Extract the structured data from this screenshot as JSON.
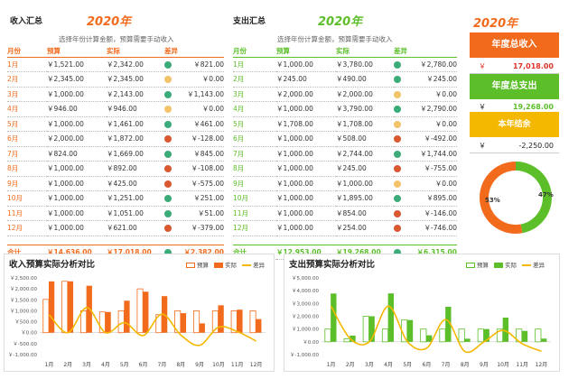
{
  "colors": {
    "orange": "#f26b1d",
    "green": "#5cbf2a",
    "yellow": "#f5b800",
    "dot_green": "#3cab7a",
    "dot_amber": "#f2c36b",
    "dot_red": "#d9582f"
  },
  "income": {
    "title": "收入汇总",
    "year": "2020年",
    "note": "选择年份计算金额，预算需要手动收入",
    "headers": {
      "month": "月份",
      "budget": "预算",
      "actual": "实际",
      "diff": "差异"
    },
    "rows": [
      {
        "month": "1月",
        "budget": "￥1,521.00",
        "actual": "￥2,342.00",
        "diff": "￥821.00",
        "status": "green"
      },
      {
        "month": "2月",
        "budget": "￥2,345.00",
        "actual": "￥2,345.00",
        "diff": "￥0.00",
        "status": "amber"
      },
      {
        "month": "3月",
        "budget": "￥1,000.00",
        "actual": "￥2,143.00",
        "diff": "￥1,143.00",
        "status": "green"
      },
      {
        "month": "4月",
        "budget": "￥946.00",
        "actual": "￥946.00",
        "diff": "￥0.00",
        "status": "amber"
      },
      {
        "month": "5月",
        "budget": "￥1,000.00",
        "actual": "￥1,461.00",
        "diff": "￥461.00",
        "status": "green"
      },
      {
        "month": "6月",
        "budget": "￥2,000.00",
        "actual": "￥1,872.00",
        "diff": "￥-128.00",
        "status": "red"
      },
      {
        "month": "7月",
        "budget": "￥824.00",
        "actual": "￥1,669.00",
        "diff": "￥845.00",
        "status": "green"
      },
      {
        "month": "8月",
        "budget": "￥1,000.00",
        "actual": "￥892.00",
        "diff": "￥-108.00",
        "status": "red"
      },
      {
        "month": "9月",
        "budget": "￥1,000.00",
        "actual": "￥425.00",
        "diff": "￥-575.00",
        "status": "red"
      },
      {
        "month": "10月",
        "budget": "￥1,000.00",
        "actual": "￥1,251.00",
        "diff": "￥251.00",
        "status": "green"
      },
      {
        "month": "11月",
        "budget": "￥1,000.00",
        "actual": "￥1,051.00",
        "diff": "￥51.00",
        "status": "green"
      },
      {
        "month": "12月",
        "budget": "￥1,000.00",
        "actual": "￥621.00",
        "diff": "￥-379.00",
        "status": "red"
      }
    ],
    "total": {
      "label": "合计",
      "budget": "￥14,636.00",
      "actual": "￥17,018.00",
      "diff": "￥2,382.00",
      "status": "green"
    }
  },
  "expense": {
    "title": "支出汇总",
    "year": "2020年",
    "note": "选择年份计算金额，预算需要手动收入",
    "headers": {
      "month": "月份",
      "budget": "预算",
      "actual": "实际",
      "diff": "差异"
    },
    "rows": [
      {
        "month": "1月",
        "budget": "￥1,000.00",
        "actual": "￥3,780.00",
        "diff": "￥2,780.00",
        "status": "green"
      },
      {
        "month": "2月",
        "budget": "￥245.00",
        "actual": "￥490.00",
        "diff": "￥245.00",
        "status": "green"
      },
      {
        "month": "3月",
        "budget": "￥2,000.00",
        "actual": "￥2,000.00",
        "diff": "￥0.00",
        "status": "amber"
      },
      {
        "month": "4月",
        "budget": "￥1,000.00",
        "actual": "￥3,790.00",
        "diff": "￥2,790.00",
        "status": "green"
      },
      {
        "month": "5月",
        "budget": "￥1,708.00",
        "actual": "￥1,708.00",
        "diff": "￥0.00",
        "status": "amber"
      },
      {
        "month": "6月",
        "budget": "￥1,000.00",
        "actual": "￥508.00",
        "diff": "￥-492.00",
        "status": "red"
      },
      {
        "month": "7月",
        "budget": "￥1,000.00",
        "actual": "￥2,744.00",
        "diff": "￥1,744.00",
        "status": "green"
      },
      {
        "month": "8月",
        "budget": "￥1,000.00",
        "actual": "￥245.00",
        "diff": "￥-755.00",
        "status": "red"
      },
      {
        "month": "9月",
        "budget": "￥1,000.00",
        "actual": "￥1,000.00",
        "diff": "￥0.00",
        "status": "amber"
      },
      {
        "month": "10月",
        "budget": "￥1,000.00",
        "actual": "￥1,895.00",
        "diff": "￥895.00",
        "status": "green"
      },
      {
        "month": "11月",
        "budget": "￥1,000.00",
        "actual": "￥854.00",
        "diff": "￥-146.00",
        "status": "red"
      },
      {
        "month": "12月",
        "budget": "￥1,000.00",
        "actual": "￥254.00",
        "diff": "￥-746.00",
        "status": "red"
      }
    ],
    "total": {
      "label": "合计",
      "budget": "￥12,953.00",
      "actual": "￥19,268.00",
      "diff": "￥6,315.00",
      "status": "green"
    }
  },
  "summary": {
    "year": "2020年",
    "income_label": "年度总收入",
    "income_currency": "￥",
    "income_value": "17,018.00",
    "expense_label": "年度总支出",
    "expense_currency": "￥",
    "expense_value": "19,268.00",
    "balance_label": "本年结余",
    "balance_currency": "￥",
    "balance_value": "-2,250.00",
    "donut": {
      "left_label": "53%",
      "right_label": "47%",
      "left_value": 53,
      "right_value": 47
    }
  },
  "chart_data": [
    {
      "type": "bar",
      "title": "收入预算实际分析对比",
      "categories": [
        "1月",
        "2月",
        "3月",
        "4月",
        "5月",
        "6月",
        "7月",
        "8月",
        "9月",
        "10月",
        "11月",
        "12月"
      ],
      "series": [
        {
          "name": "预算",
          "kind": "bar-outline",
          "values": [
            1521,
            2345,
            1000,
            946,
            1000,
            2000,
            824,
            1000,
            1000,
            1000,
            1000,
            1000
          ]
        },
        {
          "name": "实际",
          "kind": "bar",
          "values": [
            2342,
            2345,
            2143,
            946,
            1461,
            1872,
            1669,
            892,
            425,
            1251,
            1051,
            621
          ]
        },
        {
          "name": "差异",
          "kind": "line",
          "values": [
            821,
            0,
            1143,
            0,
            461,
            -128,
            845,
            -108,
            -575,
            251,
            51,
            -379
          ]
        }
      ],
      "ylim": [
        -1000,
        2500
      ],
      "yticks": [
        "￥2,500.00",
        "￥2,000.00",
        "￥1,500.00",
        "￥1,000.00",
        "￥500.00",
        "￥0.00",
        "￥-500.00",
        "￥-1,000.00"
      ],
      "legend": "top-right"
    },
    {
      "type": "bar",
      "title": "支出预算实际分析对比",
      "categories": [
        "1月",
        "2月",
        "3月",
        "4月",
        "5月",
        "6月",
        "7月",
        "8月",
        "9月",
        "10月",
        "11月",
        "12月"
      ],
      "series": [
        {
          "name": "预算",
          "kind": "bar-outline",
          "values": [
            1000,
            245,
            2000,
            1000,
            1708,
            1000,
            1000,
            1000,
            1000,
            1000,
            1000,
            1000
          ]
        },
        {
          "name": "实际",
          "kind": "bar",
          "values": [
            3780,
            490,
            2000,
            3790,
            1708,
            508,
            2744,
            245,
            1000,
            1895,
            854,
            254
          ]
        },
        {
          "name": "差异",
          "kind": "line",
          "values": [
            2780,
            245,
            0,
            2790,
            0,
            -492,
            1744,
            -755,
            0,
            895,
            -146,
            -746
          ]
        }
      ],
      "ylim": [
        -1000,
        5000
      ],
      "yticks": [
        "￥5,000.00",
        "￥4,000.00",
        "￥3,000.00",
        "￥2,000.00",
        "￥1,000.00",
        "￥0.00",
        "￥-1,000.00"
      ],
      "legend": "top-right"
    }
  ]
}
